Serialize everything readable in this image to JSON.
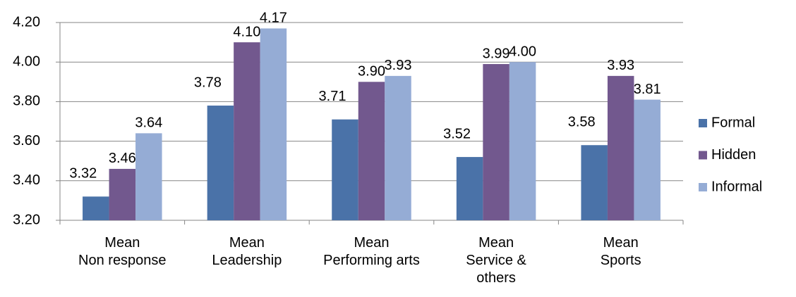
{
  "chart_data": {
    "type": "bar",
    "categories": [
      "Mean\nNon response",
      "Mean\nLeadership",
      "Mean\nPerforming arts",
      "Mean\nService &\nothers",
      "Mean\nSports"
    ],
    "series": [
      {
        "name": "Formal",
        "color": "#4a72a8",
        "values": [
          3.32,
          3.78,
          3.71,
          3.52,
          3.58
        ],
        "value_labels": [
          "3.32",
          "3.78",
          "3.71",
          "3.52",
          "3.58"
        ]
      },
      {
        "name": "Hidden",
        "color": "#72588e",
        "values": [
          3.46,
          4.1,
          3.9,
          3.99,
          3.93
        ],
        "value_labels": [
          "3.46",
          "4.10",
          "3.90",
          "3.99",
          "3.93"
        ]
      },
      {
        "name": "Informal",
        "color": "#95acd5",
        "values": [
          3.64,
          4.17,
          3.93,
          4.0,
          3.81
        ],
        "value_labels": [
          "3.64",
          "4.17",
          "3.93",
          "4.00",
          "3.81"
        ]
      }
    ],
    "ylim": [
      3.2,
      4.2
    ],
    "yticks": [
      {
        "value": 3.2,
        "label": "3.20"
      },
      {
        "value": 3.4,
        "label": "3.40"
      },
      {
        "value": 3.6,
        "label": "3.60"
      },
      {
        "value": 3.8,
        "label": "3.80"
      },
      {
        "value": 4.0,
        "label": "4.00"
      },
      {
        "value": 4.2,
        "label": "4.20"
      }
    ],
    "grid": true,
    "legend": "right"
  }
}
